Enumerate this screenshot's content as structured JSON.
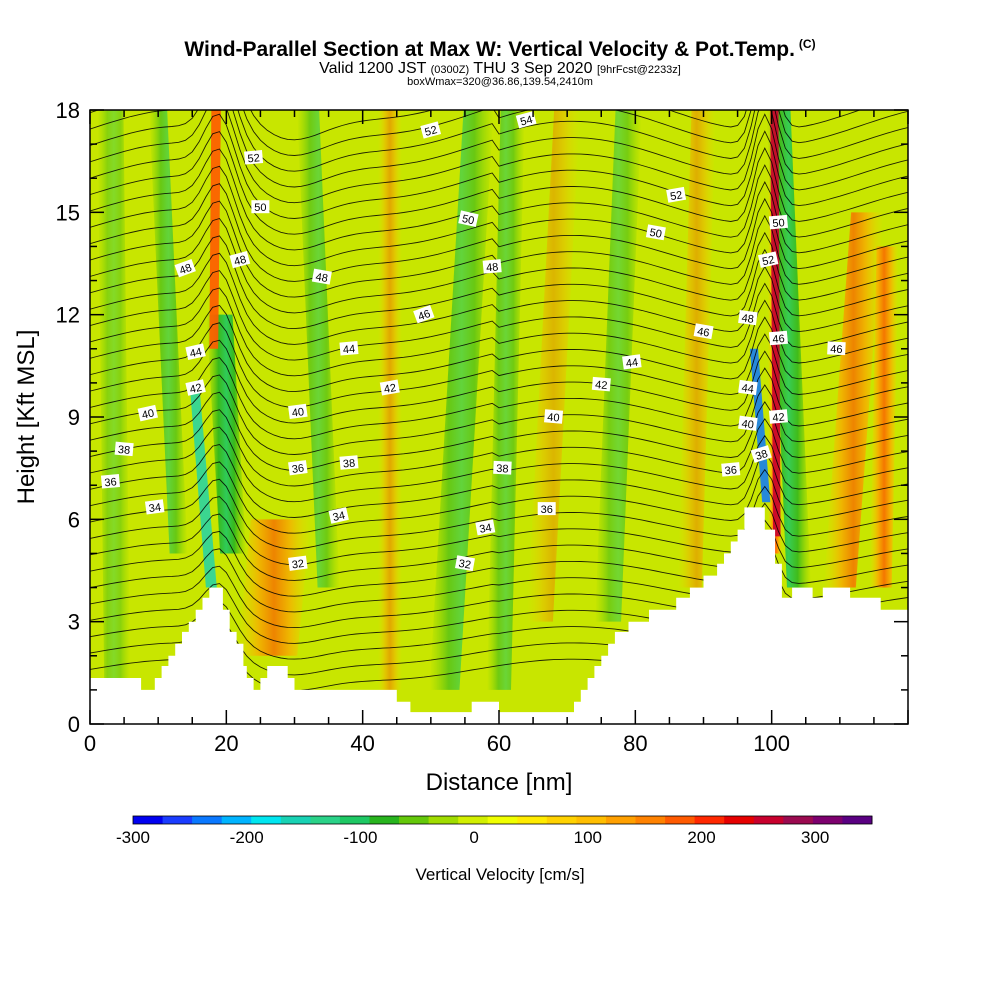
{
  "header": {
    "title": "Wind-Parallel Section at Max W: Vertical Velocity & Pot.Temp.",
    "copyright_mark": "(C)",
    "valid_prefix": "Valid 1200 JST",
    "valid_zulu": "(0300Z)",
    "valid_date": "THU 3 Sep 2020",
    "valid_fcst": "[9hrFcst@2233z]",
    "box_info": "boxWmax=320@36.86,139.54,2410m"
  },
  "chart_data": {
    "type": "heatmap",
    "xlabel": "Distance [nm]",
    "ylabel": "Height [Kft MSL]",
    "xlim": [
      0,
      120
    ],
    "ylim": [
      0,
      18
    ],
    "x_ticks": [
      0,
      20,
      40,
      60,
      80,
      100
    ],
    "y_ticks": [
      0,
      3,
      6,
      9,
      12,
      15,
      18
    ],
    "colorbar": {
      "label": "Vertical Velocity [cm/s]",
      "tick_values": [
        -300,
        -200,
        -100,
        0,
        100,
        200,
        300
      ],
      "tick_labels": [
        "-300",
        "-200",
        "-100",
        "0",
        "100",
        "200",
        "300"
      ],
      "colors": [
        "#0000f0",
        "#1a3cff",
        "#0a78ff",
        "#00b4ff",
        "#00e6f0",
        "#18d2b4",
        "#2ad288",
        "#1ec864",
        "#28b41e",
        "#64c80a",
        "#a0dc00",
        "#d2ef00",
        "#f0ff00",
        "#ffeb00",
        "#ffd200",
        "#ffbe00",
        "#ffa000",
        "#ff8200",
        "#ff5a00",
        "#ff2800",
        "#e60000",
        "#c8002d",
        "#9b0a50",
        "#7d006e",
        "#5a0082"
      ]
    },
    "terrain_kft": [
      [
        0,
        1.35
      ],
      [
        7.5,
        1.35
      ],
      [
        7.5,
        1.0
      ],
      [
        9.5,
        1.0
      ],
      [
        9.5,
        1.35
      ],
      [
        10.5,
        1.35
      ],
      [
        10.5,
        1.7
      ],
      [
        11.5,
        1.7
      ],
      [
        11.5,
        2.0
      ],
      [
        12.5,
        2.0
      ],
      [
        12.5,
        2.35
      ],
      [
        13.5,
        2.35
      ],
      [
        13.5,
        2.7
      ],
      [
        14.5,
        2.7
      ],
      [
        14.5,
        3.0
      ],
      [
        15.5,
        3.0
      ],
      [
        15.5,
        3.35
      ],
      [
        16.5,
        3.35
      ],
      [
        16.5,
        3.7
      ],
      [
        17.5,
        3.7
      ],
      [
        17.5,
        4.0
      ],
      [
        19.5,
        4.0
      ],
      [
        19.5,
        3.35
      ],
      [
        20.5,
        3.35
      ],
      [
        20.5,
        2.7
      ],
      [
        21.5,
        2.7
      ],
      [
        21.5,
        2.35
      ],
      [
        22.5,
        2.35
      ],
      [
        22.5,
        1.7
      ],
      [
        23,
        1.7
      ],
      [
        23,
        1.35
      ],
      [
        24,
        1.35
      ],
      [
        24,
        1.0
      ],
      [
        25,
        1.0
      ],
      [
        25,
        1.35
      ],
      [
        26,
        1.35
      ],
      [
        26,
        1.7
      ],
      [
        29,
        1.7
      ],
      [
        29,
        1.35
      ],
      [
        30,
        1.35
      ],
      [
        30,
        1.0
      ],
      [
        45,
        1.0
      ],
      [
        45,
        0.65
      ],
      [
        47,
        0.65
      ],
      [
        47,
        0.35
      ],
      [
        56,
        0.35
      ],
      [
        56,
        0.65
      ],
      [
        60,
        0.65
      ],
      [
        60,
        0.35
      ],
      [
        71,
        0.35
      ],
      [
        71,
        0.65
      ],
      [
        72,
        0.65
      ],
      [
        72,
        1.0
      ],
      [
        73,
        1.0
      ],
      [
        73,
        1.35
      ],
      [
        74,
        1.35
      ],
      [
        74,
        1.7
      ],
      [
        75,
        1.7
      ],
      [
        75,
        2.0
      ],
      [
        76,
        2.0
      ],
      [
        76,
        2.35
      ],
      [
        77,
        2.35
      ],
      [
        77,
        2.7
      ],
      [
        79,
        2.7
      ],
      [
        79,
        3.0
      ],
      [
        82,
        3.0
      ],
      [
        82,
        3.35
      ],
      [
        86,
        3.35
      ],
      [
        86,
        3.7
      ],
      [
        88,
        3.7
      ],
      [
        88,
        4.0
      ],
      [
        90,
        4.0
      ],
      [
        90,
        4.35
      ],
      [
        92,
        4.35
      ],
      [
        92,
        4.7
      ],
      [
        93,
        4.7
      ],
      [
        93,
        5.0
      ],
      [
        94,
        5.0
      ],
      [
        94,
        5.35
      ],
      [
        95,
        5.35
      ],
      [
        95,
        5.7
      ],
      [
        96,
        5.7
      ],
      [
        96,
        6.35
      ],
      [
        99,
        6.35
      ],
      [
        99,
        5.7
      ],
      [
        100.5,
        5.7
      ],
      [
        100.5,
        4.7
      ],
      [
        101.5,
        4.7
      ],
      [
        101.5,
        3.7
      ],
      [
        103,
        3.7
      ],
      [
        103,
        4.0
      ],
      [
        106,
        4.0
      ],
      [
        106,
        3.7
      ],
      [
        107.5,
        3.7
      ],
      [
        107.5,
        4.0
      ],
      [
        111.5,
        4.0
      ],
      [
        111.5,
        3.7
      ],
      [
        116,
        3.7
      ],
      [
        116,
        3.35
      ],
      [
        120,
        3.35
      ]
    ],
    "theta_contour_labels": [
      {
        "text": "32",
        "x": 30.5,
        "y": 4.7
      },
      {
        "text": "32",
        "x": 55,
        "y": 4.7
      },
      {
        "text": "34",
        "x": 9.5,
        "y": 6.35
      },
      {
        "text": "34",
        "x": 36.5,
        "y": 6.1
      },
      {
        "text": "34",
        "x": 58,
        "y": 5.75
      },
      {
        "text": "36",
        "x": 3,
        "y": 7.1
      },
      {
        "text": "36",
        "x": 30.5,
        "y": 7.5
      },
      {
        "text": "36",
        "x": 67,
        "y": 6.3
      },
      {
        "text": "36",
        "x": 94,
        "y": 7.45
      },
      {
        "text": "38",
        "x": 5,
        "y": 8.05
      },
      {
        "text": "38",
        "x": 38,
        "y": 7.65
      },
      {
        "text": "38",
        "x": 60.5,
        "y": 7.5
      },
      {
        "text": "38",
        "x": 98.5,
        "y": 7.9
      },
      {
        "text": "40",
        "x": 8.5,
        "y": 9.1
      },
      {
        "text": "40",
        "x": 30.5,
        "y": 9.15
      },
      {
        "text": "40",
        "x": 68,
        "y": 9.0
      },
      {
        "text": "40",
        "x": 96.5,
        "y": 8.8
      },
      {
        "text": "42",
        "x": 15.5,
        "y": 9.85
      },
      {
        "text": "42",
        "x": 44,
        "y": 9.85
      },
      {
        "text": "42",
        "x": 75,
        "y": 9.95
      },
      {
        "text": "42",
        "x": 101,
        "y": 9.0
      },
      {
        "text": "44",
        "x": 15.5,
        "y": 10.9
      },
      {
        "text": "44",
        "x": 38,
        "y": 11.0
      },
      {
        "text": "44",
        "x": 79.5,
        "y": 10.6
      },
      {
        "text": "44",
        "x": 96.5,
        "y": 9.85
      },
      {
        "text": "46",
        "x": 49,
        "y": 12.0
      },
      {
        "text": "46",
        "x": 90,
        "y": 11.5
      },
      {
        "text": "46",
        "x": 101,
        "y": 11.3
      },
      {
        "text": "46",
        "x": 109.5,
        "y": 11.0
      },
      {
        "text": "48",
        "x": 14,
        "y": 13.35
      },
      {
        "text": "48",
        "x": 34,
        "y": 13.1
      },
      {
        "text": "48",
        "x": 59,
        "y": 13.4
      },
      {
        "text": "48",
        "x": 96.5,
        "y": 11.9
      },
      {
        "text": "48",
        "x": 22,
        "y": 13.6
      },
      {
        "text": "50",
        "x": 25,
        "y": 15.15
      },
      {
        "text": "50",
        "x": 55.5,
        "y": 14.8
      },
      {
        "text": "50",
        "x": 83,
        "y": 14.4
      },
      {
        "text": "50",
        "x": 101,
        "y": 14.7
      },
      {
        "text": "52",
        "x": 24,
        "y": 16.6
      },
      {
        "text": "52",
        "x": 50,
        "y": 17.4
      },
      {
        "text": "52",
        "x": 86,
        "y": 15.5
      },
      {
        "text": "52",
        "x": 99.5,
        "y": 13.6
      },
      {
        "text": "54",
        "x": 64,
        "y": 17.7
      }
    ]
  }
}
